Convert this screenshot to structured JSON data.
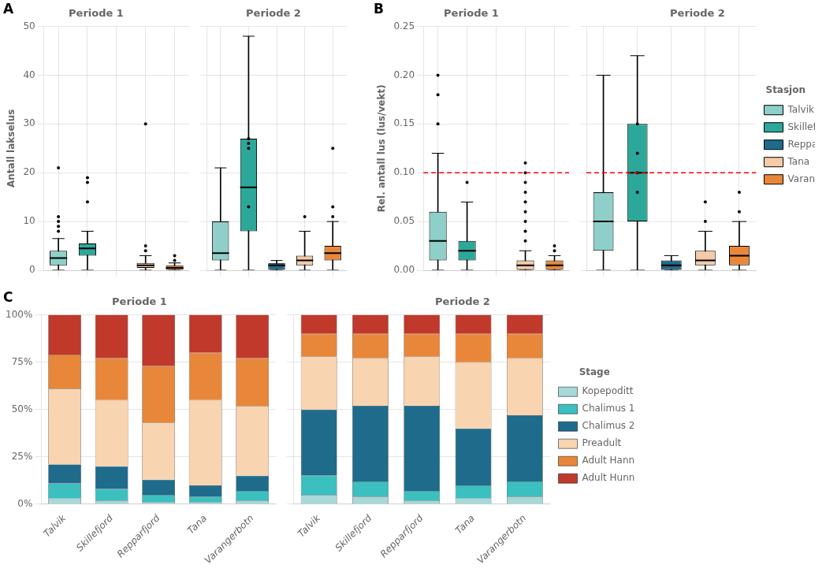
{
  "chart_data": [
    {
      "type": "box",
      "title": "Periode 1",
      "ylabel": "Antall lakselus",
      "categories": [
        "Talvik",
        "Skillefjord",
        "Repparfjord",
        "Tana",
        "Varangerbotn"
      ],
      "colors": [
        "#8ECFC9",
        "#2CA89A",
        "#1F6B8C",
        "#F5CBA7",
        "#E8873A"
      ],
      "values": [
        {
          "q1": 1.0,
          "median": 2.5,
          "q3": 4.0,
          "whisker_low": 0.0,
          "whisker_high": 6.5,
          "outliers": [
            8.0,
            9.0,
            10.0,
            11.0,
            21.0
          ]
        },
        {
          "q1": 3.0,
          "median": 4.5,
          "q3": 5.5,
          "whisker_low": 0.0,
          "whisker_high": 8.0,
          "outliers": [
            14.0,
            18.0,
            19.0
          ]
        },
        null,
        {
          "q1": 0.5,
          "median": 1.0,
          "q3": 1.5,
          "whisker_low": 0.0,
          "whisker_high": 3.0,
          "outliers": [
            4.0,
            5.0,
            30.0
          ]
        },
        {
          "q1": 0.0,
          "median": 0.5,
          "q3": 1.0,
          "whisker_low": 0.0,
          "whisker_high": 1.5,
          "outliers": [
            2.0,
            3.0
          ]
        }
      ],
      "ylim": [
        0,
        50
      ],
      "yticks": [
        0,
        10,
        20,
        30,
        40,
        50
      ],
      "grid": true,
      "tick_labels": "y",
      "annotations": [
        {
          "text": "A"
        }
      ]
    },
    {
      "type": "box",
      "title": "Periode 2",
      "categories": [
        "Talvik",
        "Skillefjord",
        "Repparfjord",
        "Tana",
        "Varangerbotn"
      ],
      "colors": [
        "#8ECFC9",
        "#2CA89A",
        "#1F6B8C",
        "#F5CBA7",
        "#E8873A"
      ],
      "values": [
        {
          "q1": 2.0,
          "median": 3.5,
          "q3": 10.0,
          "whisker_low": 0.0,
          "whisker_high": 21.0,
          "outliers": []
        },
        {
          "q1": 8.0,
          "median": 17.0,
          "q3": 27.0,
          "whisker_low": 0.0,
          "whisker_high": 48.0,
          "outliers": [
            26.0,
            27.0,
            13.0,
            25.0
          ]
        },
        {
          "q1": 0.0,
          "median": 1.0,
          "q3": 1.5,
          "whisker_low": 0.0,
          "whisker_high": 2.0,
          "outliers": []
        },
        {
          "q1": 1.0,
          "median": 2.0,
          "q3": 3.0,
          "whisker_low": 0.0,
          "whisker_high": 8.0,
          "outliers": [
            11.0
          ]
        },
        {
          "q1": 2.0,
          "median": 3.5,
          "q3": 5.0,
          "whisker_low": 0.0,
          "whisker_high": 10.0,
          "outliers": [
            11.0,
            25.0,
            13.0
          ]
        }
      ],
      "ylim": [
        0,
        50
      ],
      "yticks": [
        0,
        10,
        20,
        30,
        40,
        50
      ],
      "grid": true,
      "tick_labels": false
    },
    {
      "type": "box",
      "title": "Periode 1",
      "ylabel": "Rel. antall lus (lus/vekt)",
      "categories": [
        "Talvik",
        "Skillefjord",
        "Repparfjord",
        "Tana",
        "Varangerbotn"
      ],
      "colors": [
        "#8ECFC9",
        "#2CA89A",
        "#1F6B8C",
        "#F5CBA7",
        "#E8873A"
      ],
      "values": [
        {
          "q1": 0.01,
          "median": 0.03,
          "q3": 0.06,
          "whisker_low": 0.0,
          "whisker_high": 0.12,
          "outliers": [
            0.2,
            0.18,
            0.15
          ]
        },
        {
          "q1": 0.01,
          "median": 0.02,
          "q3": 0.03,
          "whisker_low": 0.0,
          "whisker_high": 0.07,
          "outliers": [
            0.09
          ]
        },
        null,
        {
          "q1": 0.0,
          "median": 0.005,
          "q3": 0.01,
          "whisker_low": 0.0,
          "whisker_high": 0.02,
          "outliers": [
            0.03,
            0.04,
            0.05,
            0.06,
            0.07,
            0.08,
            0.09,
            0.1,
            0.11
          ]
        },
        {
          "q1": 0.0,
          "median": 0.005,
          "q3": 0.01,
          "whisker_low": 0.0,
          "whisker_high": 0.015,
          "outliers": [
            0.02,
            0.025
          ]
        }
      ],
      "ylim": [
        0,
        0.25
      ],
      "yticks": [
        {
          "value": 0.0,
          "label": "0.00"
        },
        0.05,
        {
          "value": 0.1,
          "label": "0.10"
        },
        0.15,
        {
          "value": 0.2,
          "label": "0.20"
        },
        0.25
      ],
      "grid": true,
      "tick_labels": "y",
      "annotations": [
        {
          "text": "B"
        },
        {
          "y": 0.1,
          "color": "red",
          "line_style": "dashed"
        }
      ]
    },
    {
      "type": "box",
      "title": "Periode 2",
      "categories": [
        "Talvik",
        "Skillefjord",
        "Repparfjord",
        "Tana",
        "Varangerbotn"
      ],
      "colors": [
        "#8ECFC9",
        "#2CA89A",
        "#1F6B8C",
        "#F5CBA7",
        "#E8873A"
      ],
      "values": [
        {
          "q1": 0.02,
          "median": 0.05,
          "q3": 0.08,
          "whisker_low": 0.0,
          "whisker_high": 0.2,
          "outliers": []
        },
        {
          "q1": 0.05,
          "median": 0.1,
          "q3": 0.15,
          "whisker_low": 0.0,
          "whisker_high": 0.22,
          "outliers": [
            0.08,
            0.1,
            0.12,
            0.15
          ]
        },
        {
          "q1": 0.0,
          "median": 0.005,
          "q3": 0.01,
          "whisker_low": 0.0,
          "whisker_high": 0.015,
          "outliers": []
        },
        {
          "q1": 0.005,
          "median": 0.01,
          "q3": 0.02,
          "whisker_low": 0.0,
          "whisker_high": 0.04,
          "outliers": [
            0.05,
            0.07
          ]
        },
        {
          "q1": 0.005,
          "median": 0.015,
          "q3": 0.025,
          "whisker_low": 0.0,
          "whisker_high": 0.05,
          "outliers": [
            0.06,
            0.08
          ]
        }
      ],
      "ylim": [
        0,
        0.25
      ],
      "yticks": [
        {
          "value": 0.0,
          "label": "0.00"
        },
        0.05,
        {
          "value": 0.1,
          "label": "0.10"
        },
        0.15,
        {
          "value": 0.2,
          "label": "0.20"
        },
        0.25
      ],
      "grid": true,
      "tick_labels": false,
      "legend": "right",
      "legend_title": "Stasjon",
      "annotations": [
        {
          "y": 0.1,
          "color": "red",
          "line_style": "dashed"
        }
      ]
    },
    {
      "type": "bar",
      "title": "Periode 1",
      "stacked": true,
      "categories": [
        "Talvik",
        "Skillefjord",
        "Repparfjord",
        "Tana",
        "Varangerbotn"
      ],
      "series": [
        {
          "name": "Kopepoditt",
          "color": "#A8D8D8",
          "values": [
            0.03,
            0.02,
            0.01,
            0.01,
            0.02
          ]
        },
        {
          "name": "Chalimus 1",
          "color": "#3BBFBF",
          "values": [
            0.08,
            0.06,
            0.04,
            0.03,
            0.05
          ]
        },
        {
          "name": "Chalimus 2",
          "color": "#1F6B8C",
          "values": [
            0.1,
            0.12,
            0.08,
            0.06,
            0.08
          ]
        },
        {
          "name": "Preadult",
          "color": "#F9D4B0",
          "values": [
            0.4,
            0.35,
            0.3,
            0.45,
            0.37
          ]
        },
        {
          "name": "Adult Hann",
          "color": "#E8873A",
          "values": [
            0.18,
            0.22,
            0.3,
            0.25,
            0.25
          ]
        },
        {
          "name": "Adult Hunn",
          "color": "#C0392B",
          "values": [
            0.21,
            0.23,
            0.27,
            0.2,
            0.23
          ]
        }
      ],
      "ylim": [
        0,
        1.0
      ],
      "yticks": [
        {
          "value": 0,
          "label": "0%"
        },
        {
          "value": 0.25,
          "label": "25%"
        },
        {
          "value": 0.5,
          "label": "50%"
        },
        {
          "value": 0.75,
          "label": "75%"
        },
        {
          "value": 1.0,
          "label": "100%"
        }
      ],
      "grid": "y",
      "tick_labels": true,
      "annotations": [
        {
          "text": "C"
        }
      ]
    },
    {
      "type": "bar",
      "title": "Periode 2",
      "stacked": true,
      "categories": [
        "Talvik",
        "Skillefjord",
        "Repparfjord",
        "Tana",
        "Varangerbotn"
      ],
      "series": [
        {
          "name": "Kopepoditt",
          "color": "#A8D8D8",
          "values": [
            0.05,
            0.04,
            0.02,
            0.03,
            0.04
          ]
        },
        {
          "name": "Chalimus 1",
          "color": "#3BBFBF",
          "values": [
            0.1,
            0.08,
            0.05,
            0.07,
            0.08
          ]
        },
        {
          "name": "Chalimus 2",
          "color": "#1F6B8C",
          "values": [
            0.35,
            0.4,
            0.45,
            0.3,
            0.35
          ]
        },
        {
          "name": "Preadult",
          "color": "#F9D4B0",
          "values": [
            0.28,
            0.25,
            0.26,
            0.35,
            0.3
          ]
        },
        {
          "name": "Adult Hann",
          "color": "#E8873A",
          "values": [
            0.12,
            0.13,
            0.12,
            0.15,
            0.13
          ]
        },
        {
          "name": "Adult Hunn",
          "color": "#C0392B",
          "values": [
            0.1,
            0.1,
            0.1,
            0.1,
            0.1
          ]
        }
      ],
      "ylim": [
        0,
        1.0
      ],
      "yticks": [
        {
          "value": 0,
          "label": "0%"
        },
        {
          "value": 0.25,
          "label": "25%"
        },
        {
          "value": 0.5,
          "label": "50%"
        },
        {
          "value": 0.75,
          "label": "75%"
        },
        {
          "value": 1.0,
          "label": "100%"
        }
      ],
      "grid": "y",
      "tick_labels": "x",
      "legend": "right",
      "legend_title": "Stage"
    }
  ]
}
